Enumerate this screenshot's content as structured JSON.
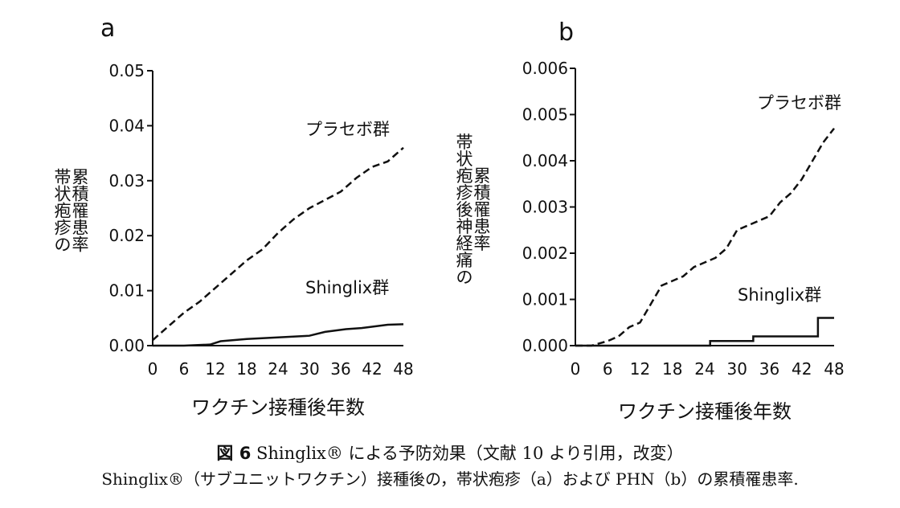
{
  "chart_data": [
    {
      "type": "line",
      "panel_label": "a",
      "ylabel": "帯状疱疹の\n累積罹患率",
      "xlabel": "ワクチン接種後年数",
      "ylim": [
        0,
        0.05
      ],
      "xlim": [
        0,
        48
      ],
      "yticks": [
        "0.00",
        "0.01",
        "0.02",
        "0.03",
        "0.04",
        "0.05"
      ],
      "ytick_values": [
        0,
        0.01,
        0.02,
        0.03,
        0.04,
        0.05
      ],
      "xticks": [
        "0",
        "6",
        "12",
        "18",
        "24",
        "30",
        "36",
        "42",
        "48"
      ],
      "xtick_values": [
        0,
        6,
        12,
        18,
        24,
        30,
        36,
        42,
        48
      ],
      "series": [
        {
          "name": "プラセボ群",
          "style": "dashed",
          "x": [
            0,
            3,
            6,
            9,
            12,
            15,
            18,
            21,
            24,
            27,
            30,
            33,
            36,
            39,
            42,
            45,
            48
          ],
          "y": [
            0.001,
            0.0035,
            0.006,
            0.008,
            0.0105,
            0.013,
            0.0155,
            0.0175,
            0.0205,
            0.023,
            0.025,
            0.0265,
            0.028,
            0.0305,
            0.0325,
            0.0335,
            0.036
          ]
        },
        {
          "name": "Shinglix群",
          "style": "solid",
          "x": [
            0,
            6,
            11,
            13,
            18,
            24,
            30,
            33,
            37,
            40,
            45,
            48
          ],
          "y": [
            0,
            0,
            0.0002,
            0.0008,
            0.0012,
            0.0015,
            0.0018,
            0.0025,
            0.003,
            0.0032,
            0.0038,
            0.0039
          ]
        }
      ],
      "annotations": [
        "プラセボ群",
        "Shinglix群"
      ]
    },
    {
      "type": "line",
      "panel_label": "b",
      "ylabel": "帯状疱疹後神経痛の\n累積罹患率",
      "xlabel": "ワクチン接種後年数",
      "ylim": [
        0,
        0.006
      ],
      "xlim": [
        0,
        48
      ],
      "yticks": [
        "0.000",
        "0.001",
        "0.002",
        "0.003",
        "0.004",
        "0.005",
        "0.006"
      ],
      "ytick_values": [
        0,
        0.001,
        0.002,
        0.003,
        0.004,
        0.005,
        0.006
      ],
      "xticks": [
        "0",
        "6",
        "12",
        "18",
        "24",
        "30",
        "36",
        "42",
        "48"
      ],
      "xtick_values": [
        0,
        6,
        12,
        18,
        24,
        30,
        36,
        42,
        48
      ],
      "series": [
        {
          "name": "プラセボ群",
          "style": "dashed",
          "x": [
            0,
            3,
            6,
            8,
            10,
            12,
            14,
            16,
            18,
            20,
            22,
            24,
            26,
            28,
            30,
            32,
            34,
            36,
            38,
            40,
            42,
            44,
            46,
            48
          ],
          "y": [
            0,
            0,
            0.0001,
            0.0002,
            0.0004,
            0.0005,
            0.0009,
            0.0013,
            0.0014,
            0.0015,
            0.0017,
            0.0018,
            0.0019,
            0.0021,
            0.0025,
            0.0026,
            0.0027,
            0.0028,
            0.0031,
            0.0033,
            0.0036,
            0.004,
            0.0044,
            0.0047
          ]
        },
        {
          "name": "Shinglix群",
          "style": "solid",
          "x": [
            0,
            25,
            33,
            45,
            48
          ],
          "y": [
            0,
            0.0001,
            0.0002,
            0.0006,
            0.0006
          ]
        }
      ],
      "annotations": [
        "プラセボ群",
        "Shinglix群"
      ]
    }
  ],
  "caption": {
    "figure_label": "図 6",
    "title": "Shinglix® による予防効果（文献 10 より引用，改変）",
    "description": "Shinglix®（サブユニットワクチン）接種後の，帯状疱疹（a）および PHN（b）の累積罹患率."
  }
}
